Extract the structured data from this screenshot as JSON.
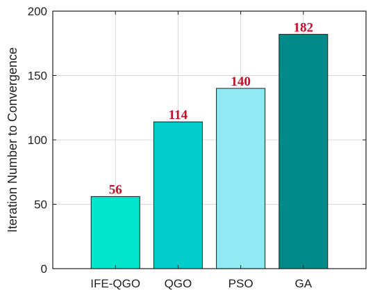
{
  "chart_data": {
    "type": "bar",
    "categories": [
      "IFE-QGO",
      "QGO",
      "PSO",
      "GA"
    ],
    "values": [
      56,
      114,
      140,
      182
    ],
    "data_labels": [
      "56",
      "114",
      "140",
      "182"
    ],
    "bar_colors": [
      "#00e5cc",
      "#00cccc",
      "#8eeaf0",
      "#008b8b"
    ],
    "data_label_color": "#c0102a",
    "title": "",
    "xlabel": "",
    "ylabel": "Iteration Number to Convergence",
    "ylim": [
      0,
      200
    ],
    "yticks": [
      0,
      50,
      100,
      150,
      200
    ],
    "xlim": [
      0,
      5
    ],
    "xticks_at": [
      1,
      2,
      3,
      4
    ],
    "grid": true,
    "legend": "none"
  }
}
